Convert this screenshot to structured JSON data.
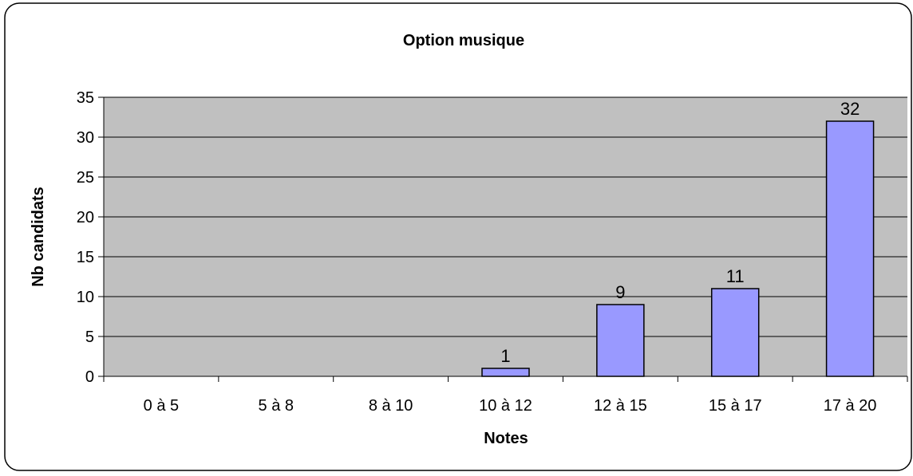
{
  "chart_data": {
    "type": "bar",
    "title": "Option musique",
    "xlabel": "Notes",
    "ylabel": "Nb candidats",
    "categories": [
      "0 à 5",
      "5 à 8",
      "8 à 10",
      "10 à 12",
      "12 à 15",
      "15 à 17",
      "17 à 20"
    ],
    "values": [
      0,
      0,
      0,
      1,
      9,
      11,
      32
    ],
    "data_labels": [
      "",
      "",
      "",
      "1",
      "9",
      "11",
      "32"
    ],
    "ylim": [
      0,
      35
    ],
    "yticks": [
      0,
      5,
      10,
      15,
      20,
      25,
      30,
      35
    ],
    "grid": true,
    "legend": "none",
    "colors": {
      "bar_fill": "#9999ff",
      "bar_stroke": "#000000",
      "plot_background": "#c0c0c0",
      "gridline": "#000000",
      "frame_border": "#000000"
    }
  }
}
